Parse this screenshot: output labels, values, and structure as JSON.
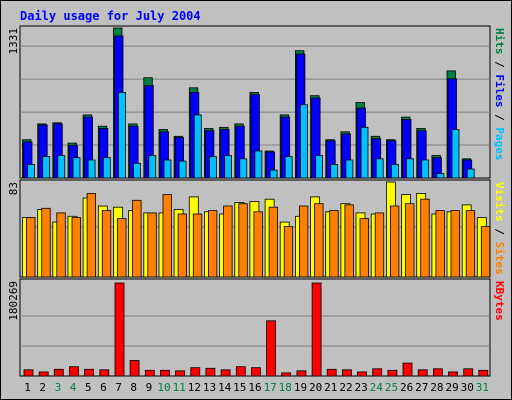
{
  "chart_data": {
    "type": "bar",
    "title": "Daily usage for July 2004",
    "days": [
      "1",
      "2",
      "3",
      "4",
      "5",
      "6",
      "7",
      "8",
      "9",
      "10",
      "11",
      "12",
      "13",
      "14",
      "15",
      "16",
      "17",
      "18",
      "19",
      "20",
      "21",
      "22",
      "23",
      "24",
      "25",
      "26",
      "27",
      "28",
      "29",
      "30",
      "31"
    ],
    "weekend_days": [
      3,
      4,
      10,
      11,
      17,
      18,
      24,
      25,
      31
    ],
    "panels": [
      {
        "name": "top",
        "ymax_label": "1331",
        "ymax": 1331,
        "right_label": [
          {
            "text": "Pages",
            "color": "#00c0ff"
          },
          {
            "text": " / ",
            "color": "#000000"
          },
          {
            "text": "Files",
            "color": "#0000ff"
          },
          {
            "text": " / ",
            "color": "#000000"
          },
          {
            "text": "Hits",
            "color": "#008040"
          }
        ],
        "series": [
          {
            "name": "Hits",
            "color": "#008040",
            "values": [
              340,
              480,
              490,
              310,
              560,
              460,
              1331,
              480,
              890,
              430,
              370,
              800,
              440,
              450,
              480,
              760,
              240,
              560,
              1130,
              730,
              340,
              410,
              670,
              370,
              340,
              540,
              440,
              200,
              950,
              170,
              0
            ]
          },
          {
            "name": "Files",
            "color": "#0000ff",
            "values": [
              320,
              470,
              480,
              290,
              540,
              440,
              1260,
              460,
              820,
              410,
              360,
              760,
              420,
              430,
              460,
              740,
              230,
              540,
              1100,
              710,
              330,
              390,
              620,
              350,
              330,
              520,
              420,
              180,
              880,
              160,
              0
            ]
          },
          {
            "name": "Pages",
            "color": "#00c0ff",
            "values": [
              120,
              190,
              200,
              180,
              160,
              180,
              760,
              130,
              200,
              160,
              150,
              560,
              190,
              200,
              170,
              240,
              70,
              190,
              650,
              200,
              120,
              160,
              450,
              170,
              120,
              170,
              160,
              40,
              430,
              80,
              0
            ]
          }
        ]
      },
      {
        "name": "middle",
        "ymax_label": "83",
        "ymax": 83,
        "right_label": [
          {
            "text": "Sites",
            "color": "#ff8000"
          },
          {
            "text": " / ",
            "color": "#000000"
          },
          {
            "text": "Visits",
            "color": "#ffff00"
          }
        ],
        "series": [
          {
            "name": "Visits",
            "color": "#ffff00",
            "values": [
              52,
              59,
              48,
              53,
              69,
              62,
              61,
              58,
              56,
              56,
              59,
              70,
              57,
              55,
              65,
              66,
              68,
              48,
              53,
              70,
              57,
              64,
              56,
              55,
              83,
              72,
              73,
              55,
              57,
              63,
              52
            ]
          },
          {
            "name": "Sites",
            "color": "#ff8000",
            "values": [
              52,
              60,
              56,
              52,
              73,
              58,
              51,
              67,
              56,
              72,
              55,
              55,
              58,
              62,
              64,
              57,
              61,
              44,
              62,
              64,
              58,
              63,
              51,
              56,
              62,
              64,
              68,
              58,
              58,
              58,
              44
            ]
          }
        ]
      },
      {
        "name": "bottom",
        "ymax_label": "180269",
        "ymax": 180269,
        "right_label": [
          {
            "text": "KBytes",
            "color": "#ff0000"
          }
        ],
        "series": [
          {
            "name": "KBytes",
            "color": "#ff0000",
            "values": [
              12000,
              8000,
              13000,
              18000,
              13000,
              12000,
              180269,
              30000,
              11000,
              11000,
              10000,
              16000,
              15000,
              12000,
              18000,
              16000,
              107000,
              6000,
              10000,
              180269,
              13000,
              12000,
              8000,
              14000,
              11000,
              25000,
              12000,
              14000,
              8000,
              14000,
              11000
            ]
          }
        ]
      }
    ]
  },
  "colors": {
    "background": "#c0c0c0",
    "title": "#0000ff",
    "weekday_label": "#000000",
    "weekend_label": "#008040"
  }
}
